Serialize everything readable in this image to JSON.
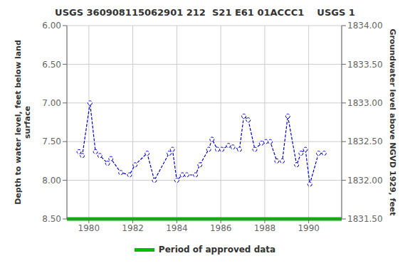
{
  "chart_data": {
    "type": "line",
    "title": "USGS 360908115062901 212  S21 E61 01ACCC1    USGS 1",
    "ylabel": "Depth to water level, feet below land\nsurface",
    "y2label": "Groundwater level above NGVD 1929, feet",
    "x": [
      1979.55,
      1979.7,
      1980.05,
      1980.3,
      1980.5,
      1980.85,
      1981.0,
      1981.45,
      1981.85,
      1982.1,
      1982.65,
      1982.98,
      1983.65,
      1983.8,
      1984.0,
      1984.25,
      1984.45,
      1984.85,
      1985.05,
      1985.45,
      1985.6,
      1985.85,
      1986.05,
      1986.35,
      1986.55,
      1986.85,
      1987.05,
      1987.25,
      1987.55,
      1987.85,
      1988.05,
      1988.25,
      1988.55,
      1988.8,
      1989.05,
      1989.45,
      1989.65,
      1989.85,
      1990.05,
      1990.45,
      1990.7
    ],
    "values": [
      7.63,
      7.68,
      7.0,
      7.63,
      7.68,
      7.78,
      7.72,
      7.9,
      7.93,
      7.8,
      7.65,
      8.0,
      7.65,
      7.6,
      8.0,
      7.93,
      7.93,
      7.93,
      7.8,
      7.6,
      7.47,
      7.6,
      7.6,
      7.55,
      7.57,
      7.6,
      7.17,
      7.22,
      7.6,
      7.52,
      7.5,
      7.5,
      7.75,
      7.75,
      7.17,
      7.8,
      7.65,
      7.6,
      8.05,
      7.65,
      7.65
    ],
    "color": "#0000cc",
    "marker": "circle",
    "line_style": "dashed",
    "xlim": [
      1979.0,
      1991.5
    ],
    "xticks": [
      1980,
      1982,
      1984,
      1986,
      1988,
      1990
    ],
    "ylim": [
      8.5,
      6.0
    ],
    "yticks": [
      {
        "value": 6.0,
        "label": "6.00"
      },
      {
        "value": 6.5,
        "label": "6.50"
      },
      {
        "value": 7.0,
        "label": "7.00"
      },
      {
        "value": 7.5,
        "label": "7.50"
      },
      {
        "value": 8.0,
        "label": "8.00"
      },
      {
        "value": 8.5,
        "label": "8.50"
      }
    ],
    "y2lim": [
      1831.5,
      1834.0
    ],
    "y2ticks": [
      {
        "value": 1834.0,
        "label": "1834.00"
      },
      {
        "value": 1833.5,
        "label": "1833.50"
      },
      {
        "value": 1833.0,
        "label": "1833.00"
      },
      {
        "value": 1832.5,
        "label": "1832.50"
      },
      {
        "value": 1832.0,
        "label": "1832.00"
      },
      {
        "value": 1831.5,
        "label": "1831.50"
      }
    ],
    "reference_lines": [
      {
        "y": 8.5,
        "label": "Period of approved data",
        "color": "#00bb00"
      }
    ],
    "grid": true,
    "legend": "bottom"
  }
}
